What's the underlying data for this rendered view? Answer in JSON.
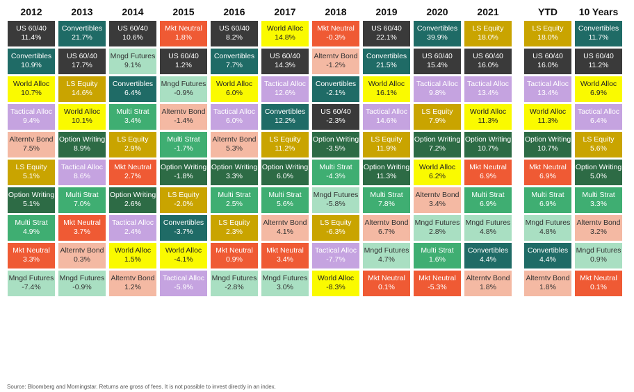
{
  "colors": {
    "US 60/40": "#3a3a3a",
    "Convertibles": "#1f6b66",
    "World Alloc": "#fafa00",
    "Tactical Alloc": "#c5a3e0",
    "Alterntv Bond": "#f4b9a3",
    "LS Equity": "#c9a400",
    "Option Writing": "#2d6b45",
    "Multi Strat": "#3fae72",
    "Mkt Neutral": "#ef5a34",
    "Mngd Futures": "#a9dfc2"
  },
  "text_colors": {
    "US 60/40": "#ffffff",
    "Convertibles": "#ffffff",
    "World Alloc": "#222222",
    "Tactical Alloc": "#ffffff",
    "Alterntv Bond": "#333333",
    "LS Equity": "#ffffff",
    "Option Writing": "#ffffff",
    "Multi Strat": "#ffffff",
    "Mkt Neutral": "#ffffff",
    "Mngd Futures": "#333333"
  },
  "chart_data": {
    "type": "table",
    "columns": [
      {
        "label": "2012",
        "cells": [
          {
            "name": "US 60/40",
            "value": "11.4%"
          },
          {
            "name": "Convertibles",
            "value": "10.9%"
          },
          {
            "name": "World Alloc",
            "value": "10.7%"
          },
          {
            "name": "Tactical Alloc",
            "value": "9.4%"
          },
          {
            "name": "Alterntv Bond",
            "value": "7.5%"
          },
          {
            "name": "LS Equity",
            "value": "5.1%"
          },
          {
            "name": "Option Writing",
            "value": "5.1%"
          },
          {
            "name": "Multi Strat",
            "value": "4.9%"
          },
          {
            "name": "Mkt Neutral",
            "value": "3.3%"
          },
          {
            "name": "Mngd Futures",
            "value": "-7.4%"
          }
        ]
      },
      {
        "label": "2013",
        "cells": [
          {
            "name": "Convertibles",
            "value": "21.7%"
          },
          {
            "name": "US 60/40",
            "value": "17.7%"
          },
          {
            "name": "LS Equity",
            "value": "14.6%"
          },
          {
            "name": "World Alloc",
            "value": "10.1%"
          },
          {
            "name": "Option Writing",
            "value": "8.9%"
          },
          {
            "name": "Tactical Alloc",
            "value": "8.6%"
          },
          {
            "name": "Multi Strat",
            "value": "7.0%"
          },
          {
            "name": "Mkt Neutral",
            "value": "3.7%"
          },
          {
            "name": "Alterntv Bond",
            "value": "0.3%"
          },
          {
            "name": "Mngd Futures",
            "value": "-0.9%"
          }
        ]
      },
      {
        "label": "2014",
        "cells": [
          {
            "name": "US 60/40",
            "value": "10.6%"
          },
          {
            "name": "Mngd Futures",
            "value": "9.1%"
          },
          {
            "name": "Convertibles",
            "value": "6.4%"
          },
          {
            "name": "Multi Strat",
            "value": "3.4%"
          },
          {
            "name": "LS Equity",
            "value": "2.9%"
          },
          {
            "name": "Mkt Neutral",
            "value": "2.7%"
          },
          {
            "name": "Option Writing",
            "value": "2.6%"
          },
          {
            "name": "Tactical Alloc",
            "value": "2.4%"
          },
          {
            "name": "World Alloc",
            "value": "1.5%"
          },
          {
            "name": "Alterntv Bond",
            "value": "1.2%"
          }
        ]
      },
      {
        "label": "2015",
        "cells": [
          {
            "name": "Mkt Neutral",
            "value": "1.8%"
          },
          {
            "name": "US 60/40",
            "value": "1.2%"
          },
          {
            "name": "Mngd Futures",
            "value": "-0.9%"
          },
          {
            "name": "Alterntv Bond",
            "value": "-1.4%"
          },
          {
            "name": "Multi Strat",
            "value": "-1.7%"
          },
          {
            "name": "Option Writing",
            "value": "-1.8%"
          },
          {
            "name": "LS Equity",
            "value": "-2.0%"
          },
          {
            "name": "Convertibles",
            "value": "-3.7%"
          },
          {
            "name": "World Alloc",
            "value": "-4.1%"
          },
          {
            "name": "Tactical Alloc",
            "value": "-5.9%"
          }
        ]
      },
      {
        "label": "2016",
        "cells": [
          {
            "name": "US 60/40",
            "value": "8.2%"
          },
          {
            "name": "Convertibles",
            "value": "7.7%"
          },
          {
            "name": "World Alloc",
            "value": "6.0%"
          },
          {
            "name": "Tactical Alloc",
            "value": "6.0%"
          },
          {
            "name": "Alterntv Bond",
            "value": "5.3%"
          },
          {
            "name": "Option Writing",
            "value": "3.3%"
          },
          {
            "name": "Multi Strat",
            "value": "2.5%"
          },
          {
            "name": "LS Equity",
            "value": "2.3%"
          },
          {
            "name": "Mkt Neutral",
            "value": "0.9%"
          },
          {
            "name": "Mngd Futures",
            "value": "-2.8%"
          }
        ]
      },
      {
        "label": "2017",
        "cells": [
          {
            "name": "World Alloc",
            "value": "14.8%"
          },
          {
            "name": "US 60/40",
            "value": "14.3%"
          },
          {
            "name": "Tactical Alloc",
            "value": "12.6%"
          },
          {
            "name": "Convertibles",
            "value": "12.2%"
          },
          {
            "name": "LS Equity",
            "value": "11.2%"
          },
          {
            "name": "Option Writing",
            "value": "6.0%"
          },
          {
            "name": "Multi Strat",
            "value": "5.6%"
          },
          {
            "name": "Alterntv Bond",
            "value": "4.1%"
          },
          {
            "name": "Mkt Neutral",
            "value": "3.4%"
          },
          {
            "name": "Mngd Futures",
            "value": "3.0%"
          }
        ]
      },
      {
        "label": "2018",
        "cells": [
          {
            "name": "Mkt Neutral",
            "value": "-0.3%"
          },
          {
            "name": "Alterntv Bond",
            "value": "-1.2%"
          },
          {
            "name": "Convertibles",
            "value": "-2.1%"
          },
          {
            "name": "US 60/40",
            "value": "-2.3%"
          },
          {
            "name": "Option Writing",
            "value": "-3.5%"
          },
          {
            "name": "Multi Strat",
            "value": "-4.3%"
          },
          {
            "name": "Mngd Futures",
            "value": "-5.8%"
          },
          {
            "name": "LS Equity",
            "value": "-6.3%"
          },
          {
            "name": "Tactical Alloc",
            "value": "-7.7%"
          },
          {
            "name": "World Alloc",
            "value": "-8.3%"
          }
        ]
      },
      {
        "label": "2019",
        "cells": [
          {
            "name": "US 60/40",
            "value": "22.1%"
          },
          {
            "name": "Convertibles",
            "value": "21.5%"
          },
          {
            "name": "World Alloc",
            "value": "16.1%"
          },
          {
            "name": "Tactical Alloc",
            "value": "14.6%"
          },
          {
            "name": "LS Equity",
            "value": "11.9%"
          },
          {
            "name": "Option Writing",
            "value": "11.3%"
          },
          {
            "name": "Multi Strat",
            "value": "7.8%"
          },
          {
            "name": "Alterntv Bond",
            "value": "6.7%"
          },
          {
            "name": "Mngd Futures",
            "value": "4.7%"
          },
          {
            "name": "Mkt Neutral",
            "value": "0.1%"
          }
        ]
      },
      {
        "label": "2020",
        "cells": [
          {
            "name": "Convertibles",
            "value": "39.9%"
          },
          {
            "name": "US 60/40",
            "value": "15.4%"
          },
          {
            "name": "Tactical Alloc",
            "value": "9.8%"
          },
          {
            "name": "LS Equity",
            "value": "7.9%"
          },
          {
            "name": "Option Writing",
            "value": "7.2%"
          },
          {
            "name": "World Alloc",
            "value": "6.2%"
          },
          {
            "name": "Alterntv Bond",
            "value": "3.4%"
          },
          {
            "name": "Mngd Futures",
            "value": "2.8%"
          },
          {
            "name": "Multi Strat",
            "value": "1.6%"
          },
          {
            "name": "Mkt Neutral",
            "value": "-5.3%"
          }
        ]
      },
      {
        "label": "2021",
        "cells": [
          {
            "name": "LS Equity",
            "value": "18.0%"
          },
          {
            "name": "US 60/40",
            "value": "16.0%"
          },
          {
            "name": "Tactical Alloc",
            "value": "13.4%"
          },
          {
            "name": "World Alloc",
            "value": "11.3%"
          },
          {
            "name": "Option Writing",
            "value": "10.7%"
          },
          {
            "name": "Mkt Neutral",
            "value": "6.9%"
          },
          {
            "name": "Multi Strat",
            "value": "6.9%"
          },
          {
            "name": "Mngd Futures",
            "value": "4.8%"
          },
          {
            "name": "Convertibles",
            "value": "4.4%"
          },
          {
            "name": "Alterntv Bond",
            "value": "1.8%"
          }
        ]
      },
      {
        "label": "YTD",
        "cells": [
          {
            "name": "LS Equity",
            "value": "18.0%"
          },
          {
            "name": "US 60/40",
            "value": "16.0%"
          },
          {
            "name": "Tactical Alloc",
            "value": "13.4%"
          },
          {
            "name": "World Alloc",
            "value": "11.3%"
          },
          {
            "name": "Option Writing",
            "value": "10.7%"
          },
          {
            "name": "Mkt Neutral",
            "value": "6.9%"
          },
          {
            "name": "Multi Strat",
            "value": "6.9%"
          },
          {
            "name": "Mngd Futures",
            "value": "4.8%"
          },
          {
            "name": "Convertibles",
            "value": "4.4%"
          },
          {
            "name": "Alterntv Bond",
            "value": "1.8%"
          }
        ]
      },
      {
        "label": "10 Years",
        "cells": [
          {
            "name": "Convertibles",
            "value": "11.7%"
          },
          {
            "name": "US 60/40",
            "value": "11.2%"
          },
          {
            "name": "World Alloc",
            "value": "6.9%"
          },
          {
            "name": "Tactical Alloc",
            "value": "6.4%"
          },
          {
            "name": "LS Equity",
            "value": "5.6%"
          },
          {
            "name": "Option Writing",
            "value": "5.0%"
          },
          {
            "name": "Multi Strat",
            "value": "3.3%"
          },
          {
            "name": "Alterntv Bond",
            "value": "3.2%"
          },
          {
            "name": "Mngd Futures",
            "value": "0.9%"
          },
          {
            "name": "Mkt Neutral",
            "value": "0.1%"
          }
        ]
      }
    ]
  },
  "footer": {
    "source": "Source: Bloomberg and Morningstar. Returns are gross of fees. It is not possible to invest directly in an index."
  }
}
